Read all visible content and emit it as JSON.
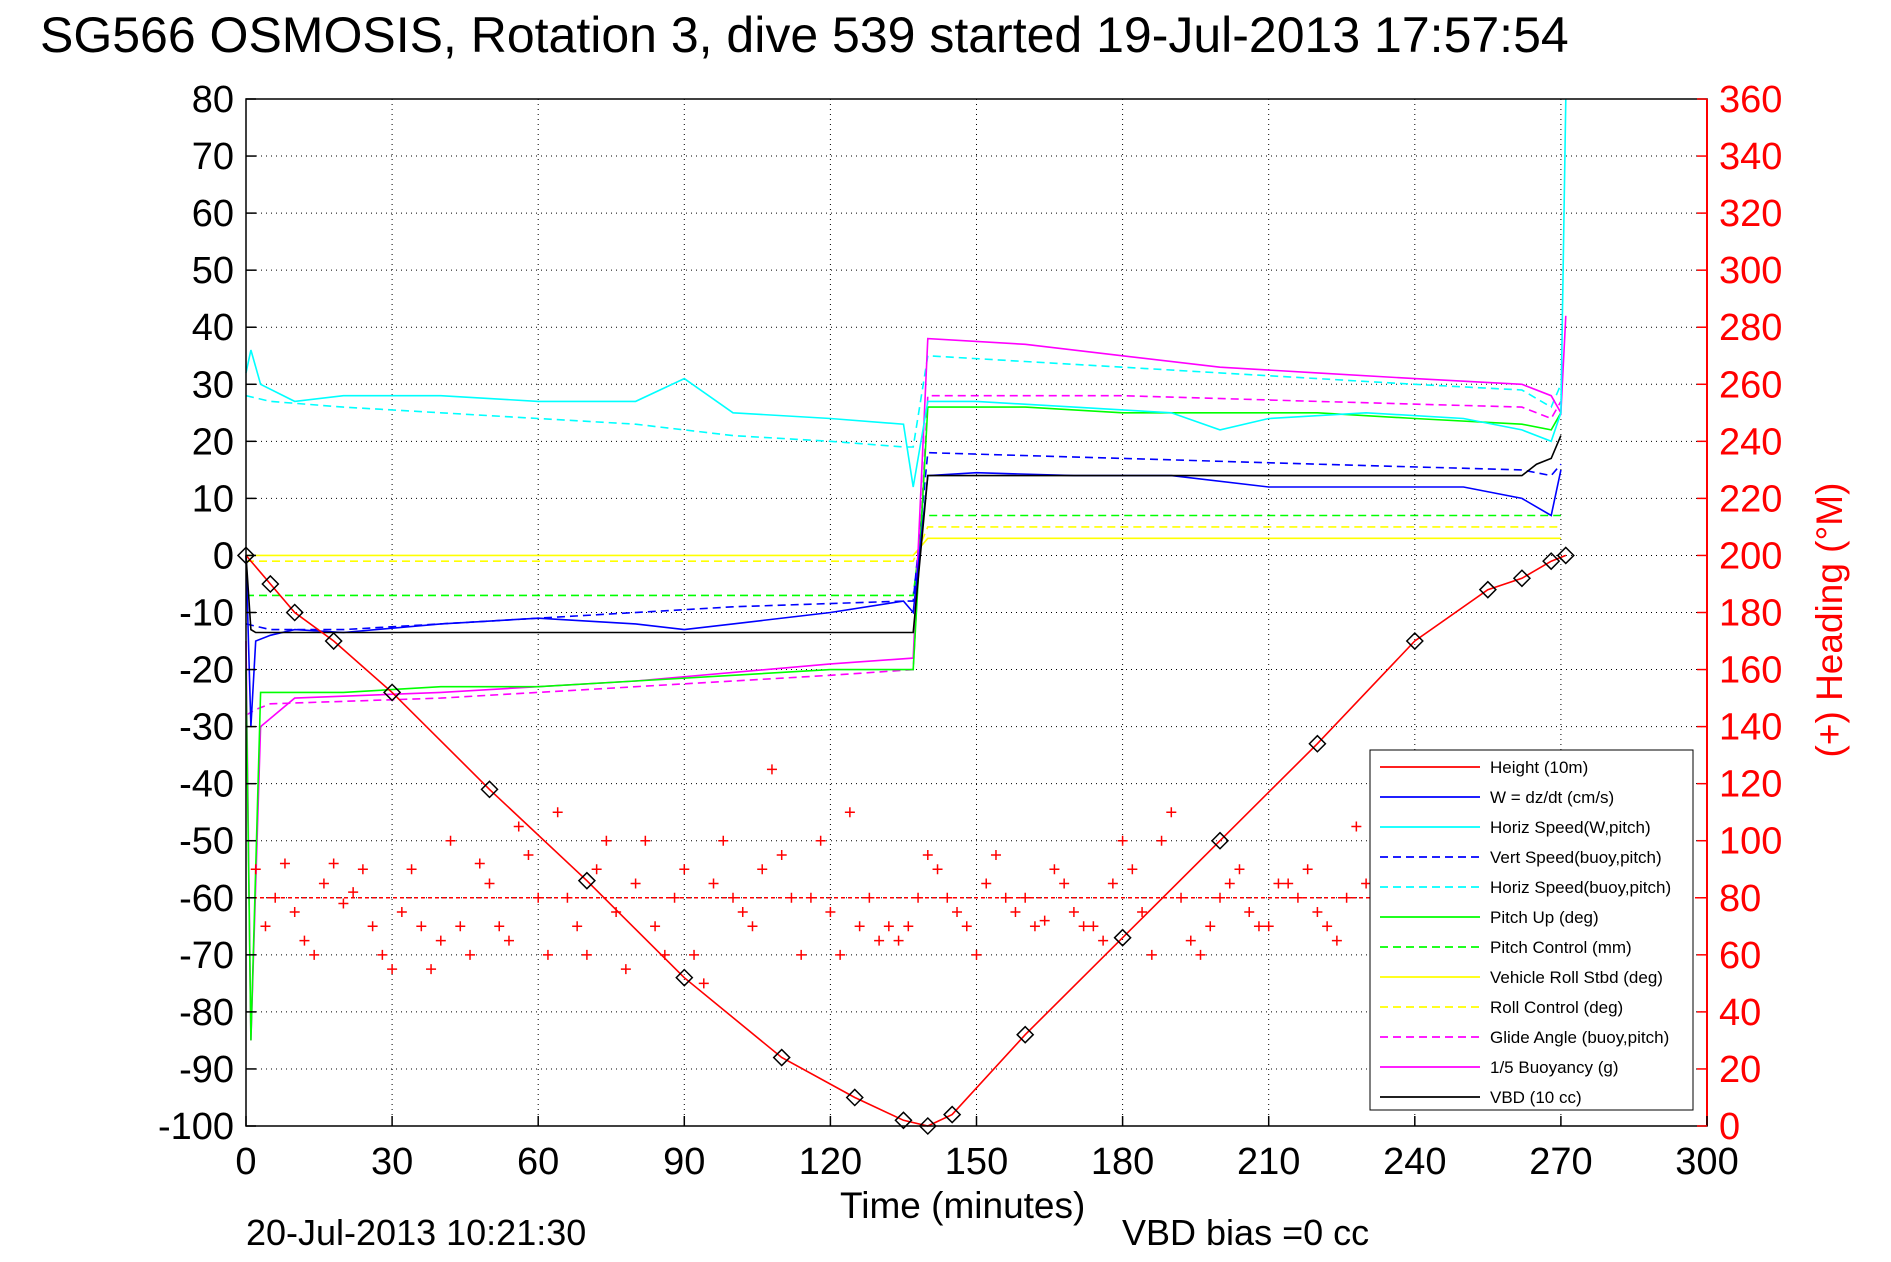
{
  "title": "SG566 OSMOSIS, Rotation 3, dive 539 started 19-Jul-2013 17:57:54",
  "footer": {
    "timestamp": "20-Jul-2013 10:21:30",
    "vbd_bias": "VBD bias =0 cc"
  },
  "chart_data": {
    "type": "line",
    "title": "SG566 OSMOSIS, Rotation 3, dive 539 started 19-Jul-2013 17:57:54",
    "xlabel": "Time (minutes)",
    "ylabel_right": "(+) Heading (°M)",
    "xlim": [
      0,
      300
    ],
    "ylim": [
      -100,
      80
    ],
    "ylim_right": [
      0,
      360
    ],
    "x_ticks": [
      "0",
      "30",
      "60",
      "90",
      "120",
      "150",
      "180",
      "210",
      "240",
      "270",
      "300"
    ],
    "y_ticks": [
      "-100",
      "-90",
      "-80",
      "-70",
      "-60",
      "-50",
      "-40",
      "-30",
      "-20",
      "-10",
      "0",
      "10",
      "20",
      "30",
      "40",
      "50",
      "60",
      "70",
      "80"
    ],
    "y_right_ticks": [
      "0",
      "20",
      "40",
      "60",
      "80",
      "100",
      "120",
      "140",
      "160",
      "180",
      "200",
      "220",
      "240",
      "260",
      "280",
      "300",
      "320",
      "340",
      "360"
    ],
    "grid": true,
    "legend_position": "bottom-right",
    "colors": {
      "height": "#ff0000",
      "w": "#0000ff",
      "horiz_speed": "#00ffff",
      "vert_speed_buoy": "#0000ff",
      "horiz_speed_buoy": "#00ffff",
      "pitch_up": "#00ff00",
      "pitch_control": "#00ff00",
      "vehicle_roll": "#ffff00",
      "roll_control": "#ffff00",
      "glide_angle": "#ff00ff",
      "buoyancy": "#ff00ff",
      "vbd": "#000000",
      "heading": "#ff0000",
      "heading_target": "#ff0000"
    },
    "series": [
      {
        "name": "Height (10m)",
        "key": "height",
        "style": "solid",
        "x": [
          0,
          5,
          10,
          18,
          30,
          50,
          70,
          90,
          110,
          125,
          135,
          140,
          145,
          160,
          180,
          200,
          220,
          240,
          255,
          262,
          268,
          271
        ],
        "y": [
          0,
          -5,
          -10,
          -15,
          -24,
          -41,
          -57,
          -74,
          -88,
          -95,
          -99,
          -100,
          -98,
          -84,
          -67,
          -50,
          -33,
          -15,
          -6,
          -4,
          -1,
          0
        ]
      },
      {
        "name": "W = dz/dt (cm/s)",
        "key": "w",
        "style": "solid",
        "x": [
          0,
          1,
          2,
          5,
          10,
          20,
          40,
          60,
          80,
          90,
          100,
          120,
          135,
          137,
          140,
          150,
          170,
          190,
          210,
          230,
          250,
          262,
          268,
          270
        ],
        "y": [
          0,
          -30,
          -15,
          -14,
          -13,
          -13.5,
          -12,
          -11,
          -12,
          -13,
          -12,
          -10,
          -8,
          -10,
          14,
          14.5,
          14,
          14,
          12,
          12,
          12,
          10,
          7,
          15
        ]
      },
      {
        "name": "Horiz Speed(W,pitch)",
        "key": "horiz_speed",
        "style": "solid",
        "x": [
          0,
          1,
          3,
          10,
          20,
          40,
          60,
          80,
          90,
          100,
          120,
          135,
          137,
          140,
          150,
          170,
          190,
          200,
          210,
          230,
          250,
          262,
          268,
          270,
          271
        ],
        "y": [
          32,
          36,
          30,
          27,
          28,
          28,
          27,
          27,
          31,
          25,
          24,
          23,
          12,
          27,
          27,
          26,
          25,
          22,
          24,
          25,
          24,
          22,
          20,
          25,
          80
        ]
      },
      {
        "name": "Vert Speed(buoy,pitch)",
        "key": "vert_speed_buoy",
        "style": "dashed",
        "x": [
          0,
          5,
          20,
          60,
          100,
          135,
          137,
          140,
          180,
          220,
          262,
          268,
          270
        ],
        "y": [
          -12,
          -13,
          -13,
          -11,
          -9,
          -8,
          -8,
          18,
          17,
          16,
          15,
          14,
          16
        ]
      },
      {
        "name": "Horiz Speed(buoy,pitch)",
        "key": "horiz_speed_buoy",
        "style": "dashed",
        "x": [
          0,
          5,
          20,
          40,
          60,
          80,
          100,
          120,
          135,
          137,
          140,
          160,
          180,
          200,
          220,
          240,
          262,
          268,
          270
        ],
        "y": [
          28,
          27,
          26,
          25,
          24,
          23,
          21,
          20,
          19,
          19,
          35,
          34,
          33,
          32,
          31,
          30,
          29,
          26,
          30
        ]
      },
      {
        "name": "Pitch Up (deg)",
        "key": "pitch_up",
        "style": "solid",
        "x": [
          0,
          1,
          3,
          10,
          20,
          40,
          60,
          80,
          100,
          120,
          135,
          137,
          140,
          160,
          180,
          200,
          220,
          240,
          262,
          268,
          270
        ],
        "y": [
          -20,
          -85,
          -24,
          -24,
          -24,
          -23,
          -23,
          -22,
          -21,
          -20,
          -20,
          -20,
          26,
          26,
          25,
          25,
          25,
          24,
          23,
          22,
          25
        ]
      },
      {
        "name": "Pitch Control (mm)",
        "key": "pitch_control",
        "style": "dashed",
        "x": [
          0,
          5,
          40,
          80,
          120,
          137,
          139,
          180,
          220,
          262,
          270
        ],
        "y": [
          -7,
          -7,
          -7,
          -7,
          -7,
          -7,
          7,
          7,
          7,
          7,
          7
        ]
      },
      {
        "name": "Vehicle Roll Stbd (deg)",
        "key": "vehicle_roll",
        "style": "solid",
        "x": [
          0,
          20,
          40,
          60,
          80,
          100,
          120,
          137,
          140,
          160,
          180,
          200,
          220,
          240,
          262,
          270
        ],
        "y": [
          0,
          0,
          0,
          0,
          0,
          0,
          0,
          0,
          3,
          3,
          3,
          3,
          3,
          3,
          3,
          3
        ]
      },
      {
        "name": "Roll Control (deg)",
        "key": "roll_control",
        "style": "dashed",
        "x": [
          0,
          40,
          80,
          120,
          137,
          140,
          180,
          220,
          262,
          270
        ],
        "y": [
          -1,
          -1,
          -1,
          -1,
          -1,
          5,
          5,
          5,
          5,
          5
        ]
      },
      {
        "name": "Glide Angle (buoy,pitch)",
        "key": "glide_angle",
        "style": "dashed",
        "x": [
          0,
          2,
          5,
          40,
          80,
          120,
          137,
          140,
          180,
          220,
          262,
          268,
          270
        ],
        "y": [
          -28,
          -27,
          -26,
          -25,
          -23,
          -21,
          -20,
          28,
          28,
          27,
          26,
          24,
          27
        ]
      },
      {
        "name": "1/5 Buoyancy (g)",
        "key": "buoyancy",
        "style": "solid",
        "x": [
          0,
          1,
          3,
          10,
          40,
          80,
          120,
          137,
          140,
          160,
          180,
          200,
          220,
          240,
          262,
          268,
          270,
          271
        ],
        "y": [
          -15,
          -85,
          -30,
          -25,
          -24,
          -22,
          -19,
          -18,
          38,
          37,
          35,
          33,
          32,
          31,
          30,
          28,
          25,
          42
        ]
      },
      {
        "name": "VBD (10 cc)",
        "key": "vbd",
        "style": "solid",
        "x": [
          0,
          1,
          2,
          135,
          137,
          140,
          160,
          180,
          200,
          220,
          240,
          262,
          265,
          268,
          270
        ],
        "y": [
          0,
          -13,
          -13.5,
          -13.5,
          -13.5,
          14,
          14,
          14,
          14,
          14,
          14,
          14,
          16,
          17,
          21
        ]
      }
    ],
    "heading": {
      "name": "Heading",
      "axis": "right",
      "marker": "+",
      "target_deg": 80,
      "x": [
        2,
        4,
        6,
        8,
        10,
        12,
        14,
        16,
        18,
        20,
        22,
        24,
        26,
        28,
        30,
        32,
        34,
        36,
        38,
        40,
        42,
        44,
        46,
        48,
        50,
        52,
        54,
        56,
        58,
        60,
        62,
        64,
        66,
        68,
        70,
        72,
        74,
        76,
        78,
        80,
        82,
        84,
        86,
        88,
        90,
        92,
        94,
        96,
        98,
        100,
        102,
        104,
        106,
        108,
        110,
        112,
        114,
        116,
        118,
        120,
        122,
        124,
        126,
        128,
        130,
        132,
        134,
        136,
        138,
        140,
        142,
        144,
        146,
        148,
        150,
        152,
        154,
        156,
        158,
        160,
        162,
        164,
        166,
        168,
        170,
        172,
        174,
        176,
        178,
        180,
        182,
        184,
        186,
        188,
        190,
        192,
        194,
        196,
        198,
        200,
        202,
        204,
        206,
        208,
        210,
        212,
        214,
        216,
        218,
        220,
        222,
        224,
        226,
        228,
        230,
        232
      ],
      "y": [
        90,
        70,
        80,
        92,
        75,
        65,
        60,
        85,
        92,
        78,
        82,
        90,
        70,
        60,
        55,
        75,
        90,
        70,
        55,
        65,
        100,
        70,
        60,
        92,
        85,
        70,
        65,
        105,
        95,
        80,
        60,
        110,
        80,
        70,
        60,
        90,
        100,
        75,
        55,
        85,
        100,
        70,
        60,
        80,
        90,
        60,
        50,
        85,
        100,
        80,
        75,
        70,
        90,
        125,
        95,
        80,
        60,
        80,
        100,
        75,
        60,
        110,
        70,
        80,
        65,
        70,
        65,
        70,
        80,
        95,
        90,
        80,
        75,
        70,
        60,
        85,
        95,
        80,
        75,
        80,
        70,
        72,
        90,
        85,
        75,
        70,
        70,
        65,
        85,
        100,
        90,
        75,
        60,
        100,
        110,
        80,
        65,
        60,
        70,
        80,
        85,
        90,
        75,
        70,
        70,
        85,
        85,
        80,
        90,
        75,
        70,
        65,
        80,
        105,
        85,
        60
      ]
    }
  }
}
